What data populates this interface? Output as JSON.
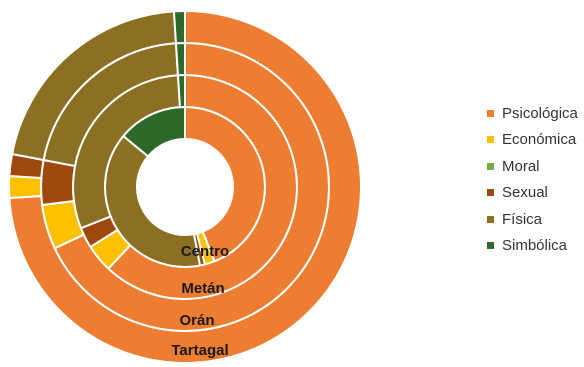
{
  "chart_data": {
    "type": "doughnut",
    "categories": [
      "Psicológica",
      "Económica",
      "Moral",
      "Sexual",
      "Física",
      "Simbólica"
    ],
    "colors": [
      "#ED7D31",
      "#FFC000",
      "#70AD47",
      "#9E480E",
      "#8B6F22",
      "#2D6A2A"
    ],
    "rings": [
      {
        "name": "Centro",
        "values": [
          44,
          2,
          0,
          1,
          39,
          14
        ]
      },
      {
        "name": "Metán",
        "values": [
          62,
          4,
          0,
          3,
          30,
          1
        ]
      },
      {
        "name": "Orán",
        "values": [
          68,
          5,
          0,
          5,
          21,
          1
        ]
      },
      {
        "name": "Tartagal",
        "values": [
          74,
          2,
          0,
          2,
          21,
          1
        ]
      }
    ],
    "legend_position": "right"
  }
}
